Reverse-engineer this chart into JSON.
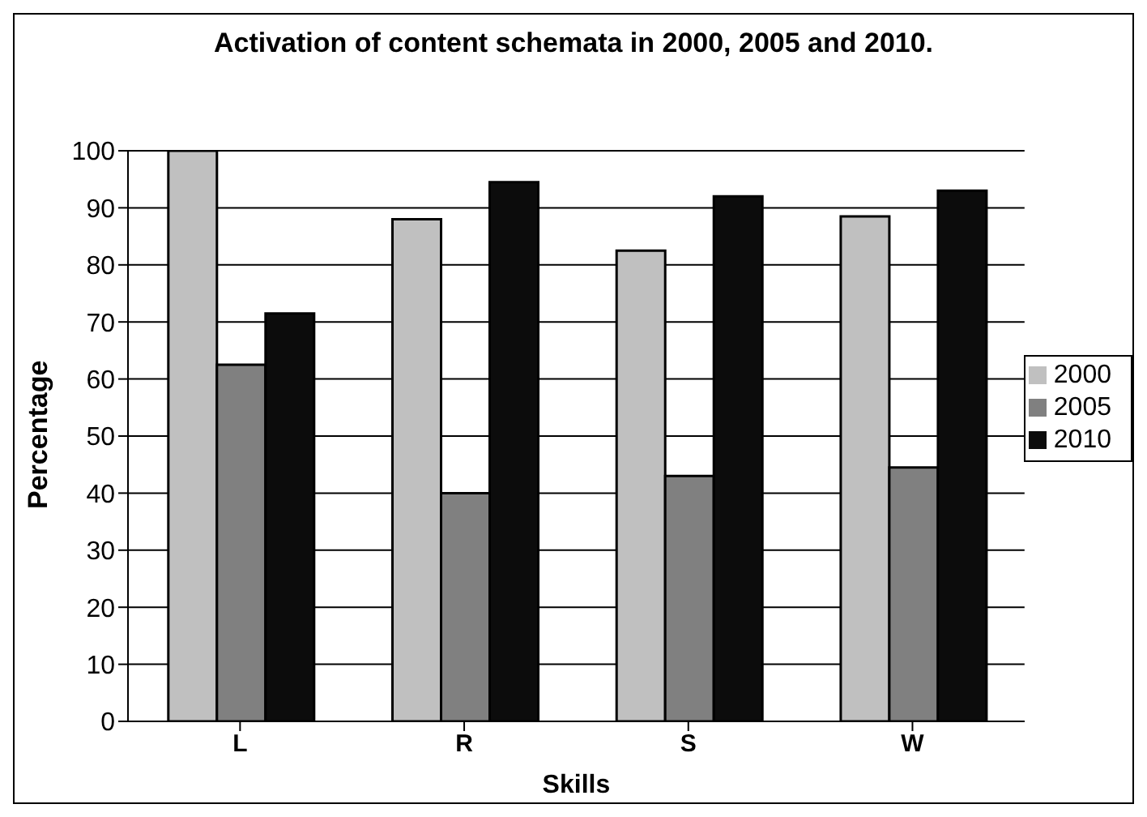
{
  "chart_data": {
    "type": "bar",
    "title": "Activation of content schemata in 2000, 2005 and 2010.",
    "xlabel": "Skills",
    "ylabel": "Percentage",
    "categories": [
      "L",
      "R",
      "S",
      "W"
    ],
    "series": [
      {
        "name": "2000",
        "color": "#c0c0c0",
        "values": [
          100,
          88,
          82.5,
          88.5
        ]
      },
      {
        "name": "2005",
        "color": "#808080",
        "values": [
          62.5,
          40,
          43,
          44.5
        ]
      },
      {
        "name": "2010",
        "color": "#0c0c0c",
        "values": [
          71.5,
          94.5,
          92,
          93
        ]
      }
    ],
    "ylim": [
      0,
      100
    ],
    "yticks": [
      0,
      10,
      20,
      30,
      40,
      50,
      60,
      70,
      80,
      90,
      100
    ],
    "grid": "y",
    "legend": "right"
  }
}
